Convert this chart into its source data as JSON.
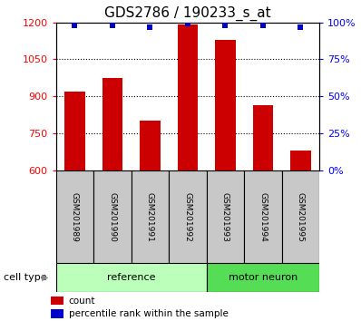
{
  "title": "GDS2786 / 190233_s_at",
  "samples": [
    "GSM201989",
    "GSM201990",
    "GSM201991",
    "GSM201992",
    "GSM201993",
    "GSM201994",
    "GSM201995"
  ],
  "counts": [
    920,
    975,
    800,
    1190,
    1130,
    865,
    680
  ],
  "percentile_ranks": [
    98,
    98,
    97,
    99,
    98,
    98,
    97
  ],
  "ylim": [
    600,
    1200
  ],
  "yticks_left": [
    600,
    750,
    900,
    1050,
    1200
  ],
  "yticks_right": [
    0,
    25,
    50,
    75,
    100
  ],
  "bar_color": "#cc0000",
  "dot_color": "#0000cc",
  "groups": [
    {
      "label": "reference",
      "indices": [
        0,
        1,
        2,
        3
      ],
      "color": "#bbffbb"
    },
    {
      "label": "motor neuron",
      "indices": [
        4,
        5,
        6
      ],
      "color": "#55dd55"
    }
  ],
  "tick_area_color": "#c8c8c8",
  "bar_width": 0.55,
  "title_fontsize": 11,
  "tick_fontsize": 8,
  "label_fontsize": 8
}
